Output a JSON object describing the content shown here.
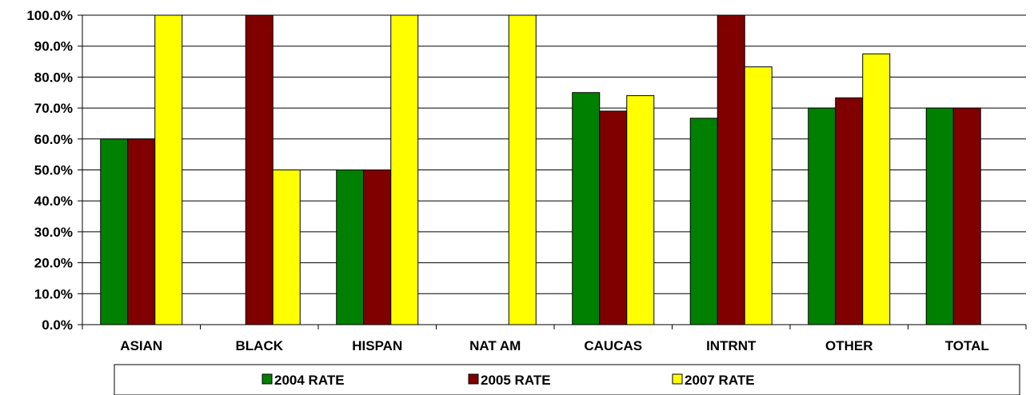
{
  "chart_data": {
    "type": "bar",
    "title": "",
    "xlabel": "",
    "ylabel": "",
    "ylim": [
      0,
      100
    ],
    "y_tick_step": 10,
    "y_tick_format": "percent_1dp",
    "grid": "horizontal",
    "legend_placement": "bottom",
    "categories": [
      "ASIAN",
      "BLACK",
      "HISPAN",
      "NAT AM",
      "CAUCAS",
      "INTRNT",
      "OTHER",
      "TOTAL"
    ],
    "series": [
      {
        "name": "2004 RATE",
        "color": "#008000",
        "values": [
          60.0,
          null,
          50.0,
          null,
          75.0,
          66.7,
          70.0,
          70.0
        ]
      },
      {
        "name": "2005 RATE",
        "color": "#800000",
        "values": [
          60.0,
          100.0,
          50.0,
          null,
          69.0,
          100.0,
          73.3,
          70.0
        ]
      },
      {
        "name": "2007 RATE",
        "color": "#FFFF00",
        "values": [
          100.0,
          50.0,
          100.0,
          100.0,
          74.0,
          83.3,
          87.5,
          null
        ]
      }
    ]
  }
}
